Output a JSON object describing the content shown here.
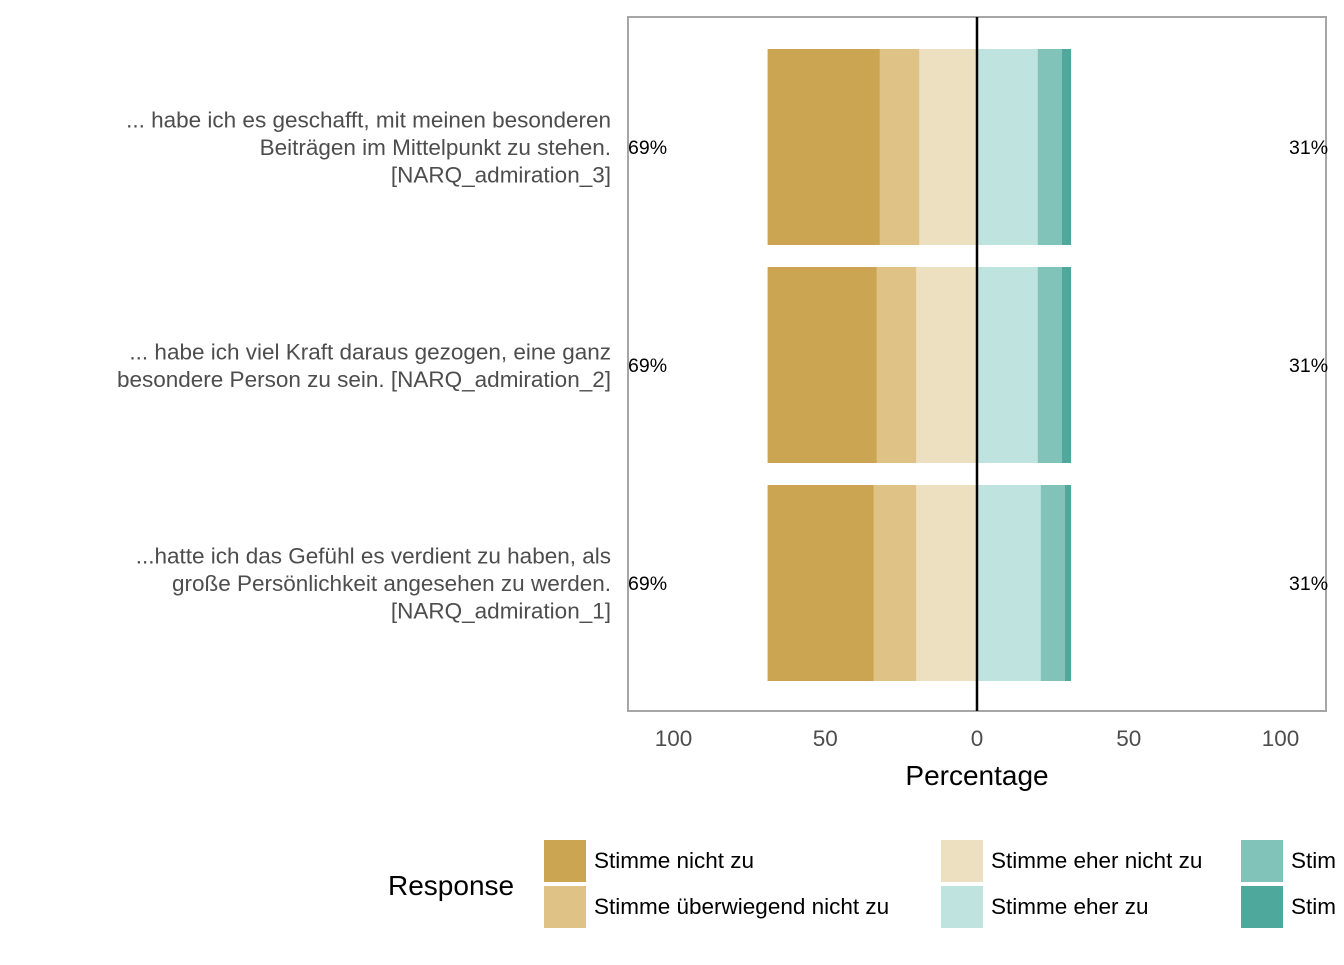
{
  "chart_data": {
    "type": "bar",
    "orientation": "horizontal-diverging",
    "xlabel": "Percentage",
    "x_ticks": [
      "100",
      "50",
      "0",
      "50",
      "100"
    ],
    "xlim": [
      -100,
      100
    ],
    "legend": {
      "title": "Response",
      "position": "bottom",
      "entries": [
        "Stimme nicht zu",
        "Stimme überwiegend nicht zu",
        "Stimme eher nicht zu",
        "Stimme eher zu",
        "Stim",
        "Stim"
      ]
    },
    "categories": [
      [
        "... habe ich es geschafft, mit meinen besonderen",
        "Beiträgen im Mittelpunkt zu stehen.",
        "[NARQ_admiration_3]"
      ],
      [
        "... habe ich viel Kraft daraus gezogen, eine ganz",
        "besondere Person zu sein. [NARQ_admiration_2]"
      ],
      [
        "...hatte ich das Gefühl es verdient zu haben, als",
        "große Persönlichkeit angesehen zu werden.",
        "[NARQ_admiration_1]"
      ]
    ],
    "left_labels": [
      "69%",
      "69%",
      "69%"
    ],
    "right_labels": [
      "31%",
      "31%",
      "31%"
    ],
    "series": [
      {
        "name": "Stimme nicht zu",
        "color": "#CCA552",
        "side": "negative",
        "values": [
          37,
          36,
          35
        ]
      },
      {
        "name": "Stimme überwiegend nicht zu",
        "color": "#DFC386",
        "side": "negative",
        "values": [
          13,
          13,
          14
        ]
      },
      {
        "name": "Stimme eher nicht zu",
        "color": "#EDE0C0",
        "side": "negative",
        "values": [
          19,
          20,
          20
        ]
      },
      {
        "name": "Stimme eher zu",
        "color": "#BFE3DF",
        "side": "positive",
        "values": [
          20,
          20,
          21
        ]
      },
      {
        "name": "",
        "color": "#82C3B9",
        "side": "positive",
        "values": [
          8,
          8,
          8
        ]
      },
      {
        "name": "",
        "color": "#4EA89C",
        "side": "positive",
        "values": [
          3,
          3,
          2
        ]
      }
    ]
  }
}
